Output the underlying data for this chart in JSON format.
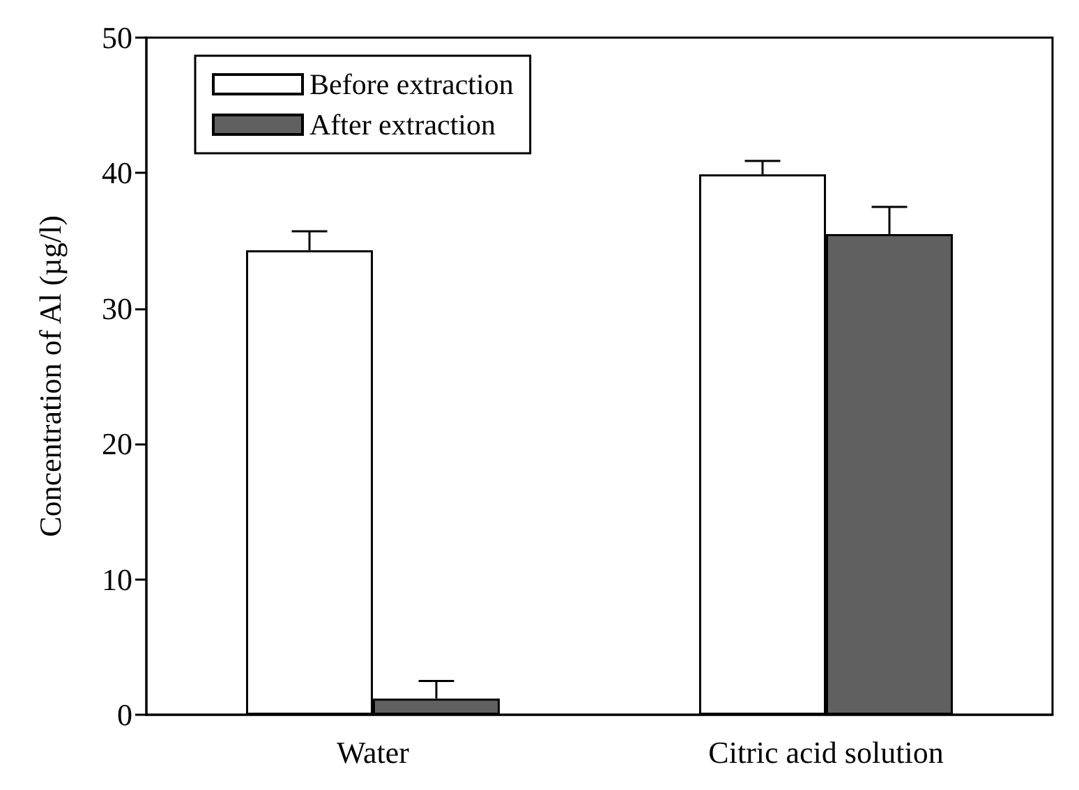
{
  "chart_data": {
    "type": "bar",
    "ylabel": "Concentration of Al (µg/l)",
    "categories": [
      "Water",
      "Citric acid solution"
    ],
    "series": [
      {
        "name": "Before extraction",
        "color": "#ffffff",
        "values": [
          34.3,
          39.9
        ],
        "errors": [
          [
            34.3,
            35.7
          ],
          [
            39.9,
            40.9
          ]
        ]
      },
      {
        "name": "After extraction",
        "color": "#606060",
        "values": [
          1.2,
          35.5
        ],
        "errors": [
          [
            1.2,
            2.5
          ],
          [
            35.5,
            37.5
          ]
        ]
      }
    ],
    "ylim": [
      0,
      50
    ],
    "yticks": [
      0,
      10,
      20,
      30,
      40,
      50
    ],
    "grid": false,
    "legend": "top left"
  }
}
